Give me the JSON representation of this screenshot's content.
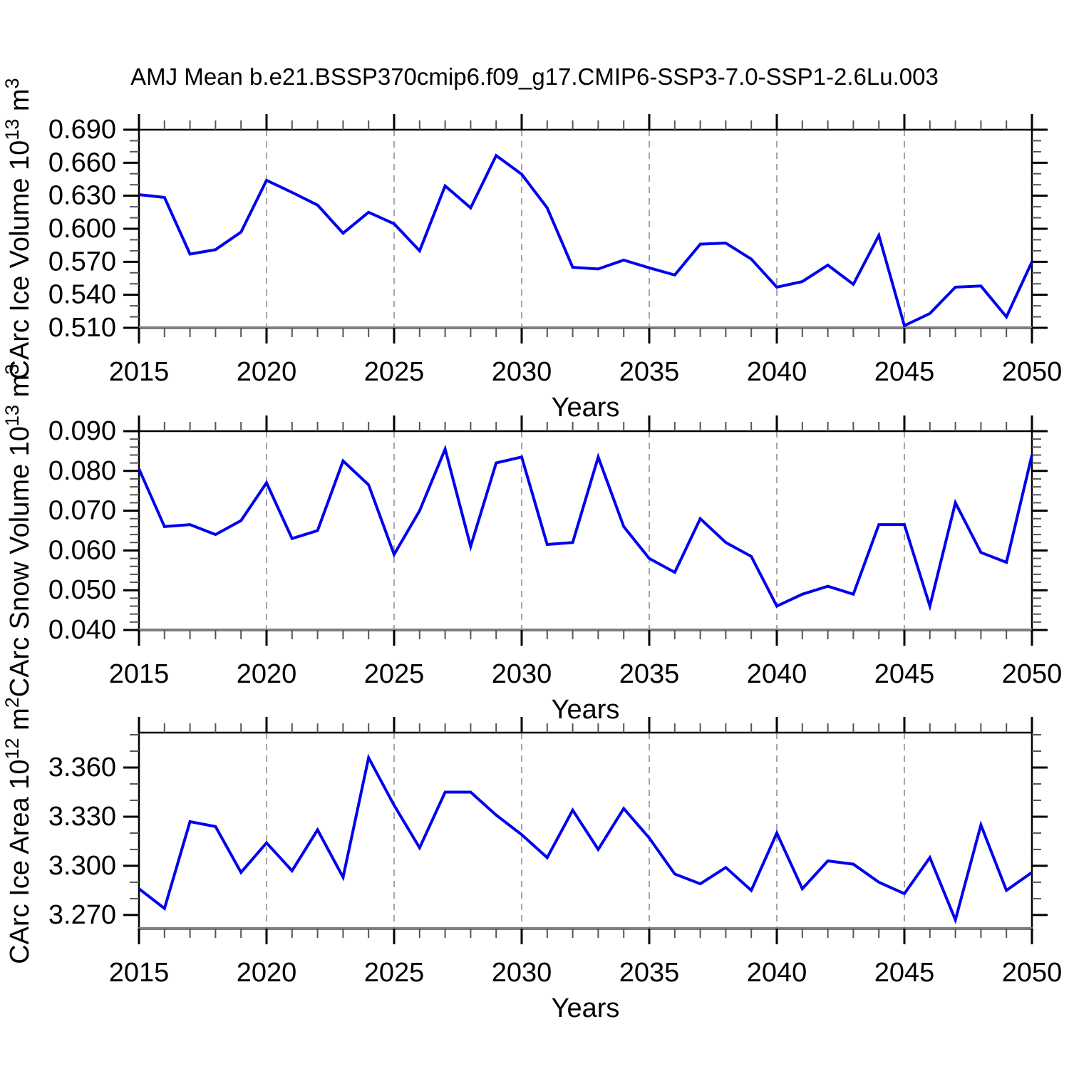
{
  "page": {
    "title": "AMJ Mean b.e21.BSSP370cmip6.f09_g17.CMIP6-SSP3-7.0-SSP1-2.6Lu.003"
  },
  "chart_data": [
    {
      "type": "line",
      "id": "carc-ice-volume",
      "ylabel_parts": [
        {
          "text": "CArc Ice Volume 10"
        },
        {
          "text": "13",
          "super": true
        },
        {
          "text": " m"
        },
        {
          "text": "3",
          "super": true
        }
      ],
      "xlabel": "Years",
      "line_color": "#0000ee",
      "grid_color": "#a6a6a6",
      "x_range": [
        2015,
        2050
      ],
      "x_major_ticks": [
        2015,
        2020,
        2025,
        2030,
        2035,
        2040,
        2045,
        2050
      ],
      "x_grid": [
        2020,
        2025,
        2030,
        2035,
        2040,
        2045
      ],
      "y_domain": [
        0.51,
        0.69
      ],
      "y_major_ticks": [
        0.51,
        0.54,
        0.57,
        0.6,
        0.63,
        0.66,
        0.69
      ],
      "y_minor_step": 0.01,
      "y_tick_decimals": 3,
      "years": [
        2015,
        2016,
        2017,
        2018,
        2019,
        2020,
        2021,
        2022,
        2023,
        2024,
        2025,
        2026,
        2027,
        2028,
        2029,
        2030,
        2031,
        2032,
        2033,
        2034,
        2035,
        2036,
        2037,
        2038,
        2039,
        2040,
        2041,
        2042,
        2043,
        2044,
        2045,
        2046,
        2047,
        2048,
        2049,
        2050
      ],
      "values": [
        0.631,
        0.6285,
        0.577,
        0.581,
        0.597,
        0.644,
        0.633,
        0.6215,
        0.596,
        0.615,
        0.6045,
        0.58,
        0.639,
        0.619,
        0.6665,
        0.6495,
        0.619,
        0.565,
        0.5635,
        0.5715,
        0.5645,
        0.558,
        0.586,
        0.587,
        0.5725,
        0.547,
        0.552,
        0.567,
        0.5495,
        0.594,
        0.512,
        0.523,
        0.547,
        0.548,
        0.52,
        0.57
      ]
    },
    {
      "type": "line",
      "id": "carc-snow-volume",
      "ylabel_parts": [
        {
          "text": "CArc Snow Volume 10"
        },
        {
          "text": "13",
          "super": true
        },
        {
          "text": " m"
        },
        {
          "text": "3",
          "super": true
        }
      ],
      "xlabel": "Years",
      "line_color": "#0000ee",
      "grid_color": "#a6a6a6",
      "x_range": [
        2015,
        2050
      ],
      "x_major_ticks": [
        2015,
        2020,
        2025,
        2030,
        2035,
        2040,
        2045,
        2050
      ],
      "x_grid": [
        2020,
        2025,
        2030,
        2035,
        2040,
        2045
      ],
      "y_domain": [
        0.04,
        0.09
      ],
      "y_major_ticks": [
        0.04,
        0.05,
        0.06,
        0.07,
        0.08,
        0.09
      ],
      "y_minor_step": 0.002,
      "y_tick_decimals": 3,
      "years": [
        2015,
        2016,
        2017,
        2018,
        2019,
        2020,
        2021,
        2022,
        2023,
        2024,
        2025,
        2026,
        2027,
        2028,
        2029,
        2030,
        2031,
        2032,
        2033,
        2034,
        2035,
        2036,
        2037,
        2038,
        2039,
        2040,
        2041,
        2042,
        2043,
        2044,
        2045,
        2046,
        2047,
        2048,
        2049,
        2050
      ],
      "values": [
        0.0805,
        0.066,
        0.0665,
        0.064,
        0.0675,
        0.077,
        0.063,
        0.065,
        0.0825,
        0.0765,
        0.059,
        0.07,
        0.0855,
        0.061,
        0.082,
        0.0835,
        0.0615,
        0.062,
        0.0835,
        0.066,
        0.058,
        0.0545,
        0.068,
        0.062,
        0.0585,
        0.046,
        0.049,
        0.051,
        0.049,
        0.0665,
        0.0665,
        0.046,
        0.072,
        0.0595,
        0.057,
        0.084
      ]
    },
    {
      "type": "line",
      "id": "carc-ice-area",
      "ylabel_parts": [
        {
          "text": "CArc Ice Area 10"
        },
        {
          "text": "12",
          "super": true
        },
        {
          "text": " m"
        },
        {
          "text": "2",
          "super": true
        }
      ],
      "xlabel": "Years",
      "line_color": "#0000ee",
      "grid_color": "#a6a6a6",
      "x_range": [
        2015,
        2050
      ],
      "x_major_ticks": [
        2015,
        2020,
        2025,
        2030,
        2035,
        2040,
        2045,
        2050
      ],
      "x_grid": [
        2020,
        2025,
        2030,
        2035,
        2040,
        2045
      ],
      "y_domain": [
        3.2617,
        3.3813
      ],
      "y_major_ticks": [
        3.27,
        3.3,
        3.33,
        3.36
      ],
      "y_minor_step": 0.01,
      "y_tick_decimals": 3,
      "years": [
        2015,
        2016,
        2017,
        2018,
        2019,
        2020,
        2021,
        2022,
        2023,
        2024,
        2025,
        2026,
        2027,
        2028,
        2029,
        2030,
        2031,
        2032,
        2033,
        2034,
        2035,
        2036,
        2037,
        2038,
        2039,
        2040,
        2041,
        2042,
        2043,
        2044,
        2045,
        2046,
        2047,
        2048,
        2049,
        2050
      ],
      "values": [
        3.286,
        3.274,
        3.327,
        3.324,
        3.296,
        3.314,
        3.297,
        3.322,
        3.293,
        3.366,
        3.337,
        3.311,
        3.345,
        3.345,
        3.331,
        3.319,
        3.305,
        3.334,
        3.31,
        3.335,
        3.317,
        3.295,
        3.289,
        3.299,
        3.285,
        3.32,
        3.286,
        3.303,
        3.301,
        3.29,
        3.283,
        3.305,
        3.267,
        3.325,
        3.285,
        3.296
      ]
    }
  ]
}
